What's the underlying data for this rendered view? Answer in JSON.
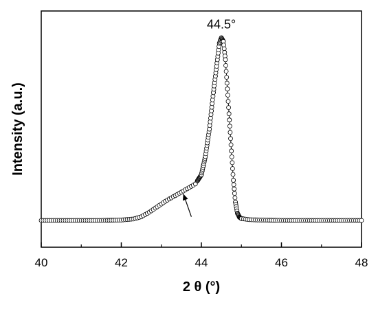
{
  "chart_data": {
    "type": "scatter",
    "title": "",
    "xlabel": "2 θ (°)",
    "ylabel": "Intensity (a.u.)",
    "xlim": [
      40,
      48
    ],
    "ylim": [
      0,
      1.15
    ],
    "grid": false,
    "legend": "none",
    "x_ticks": [
      40,
      42,
      44,
      46,
      48
    ],
    "x_tick_labels": [
      "40",
      "42",
      "44",
      "46",
      "48"
    ],
    "y_ticks_labeled": false,
    "annotations": [
      {
        "text": "44.5°",
        "x": 44.5,
        "y": 1.05
      },
      {
        "text": "",
        "kind": "arrow",
        "x": 43.55,
        "y": 0.145,
        "note_from": [
          43.75,
          0.02
        ]
      }
    ],
    "series": [
      {
        "marker": "open-circle",
        "points": [
          [
            40.0,
            0.0
          ],
          [
            40.5,
            0.0
          ],
          [
            41.0,
            0.0
          ],
          [
            41.5,
            0.0
          ],
          [
            42.0,
            0.002
          ],
          [
            42.3,
            0.008
          ],
          [
            42.5,
            0.02
          ],
          [
            42.7,
            0.045
          ],
          [
            42.9,
            0.075
          ],
          [
            43.1,
            0.105
          ],
          [
            43.3,
            0.13
          ],
          [
            43.5,
            0.155
          ],
          [
            43.7,
            0.18
          ],
          [
            43.85,
            0.2
          ],
          [
            44.0,
            0.25
          ],
          [
            44.1,
            0.35
          ],
          [
            44.2,
            0.5
          ],
          [
            44.3,
            0.7
          ],
          [
            44.4,
            0.88
          ],
          [
            44.45,
            0.97
          ],
          [
            44.5,
            1.0
          ],
          [
            44.55,
            0.98
          ],
          [
            44.6,
            0.88
          ],
          [
            44.65,
            0.72
          ],
          [
            44.7,
            0.55
          ],
          [
            44.75,
            0.38
          ],
          [
            44.8,
            0.22
          ],
          [
            44.85,
            0.1
          ],
          [
            44.9,
            0.04
          ],
          [
            44.95,
            0.018
          ],
          [
            45.0,
            0.01
          ],
          [
            45.2,
            0.004
          ],
          [
            45.5,
            0.002
          ],
          [
            46.0,
            0.0
          ],
          [
            47.0,
            0.0
          ],
          [
            48.0,
            0.0
          ]
        ]
      }
    ]
  }
}
